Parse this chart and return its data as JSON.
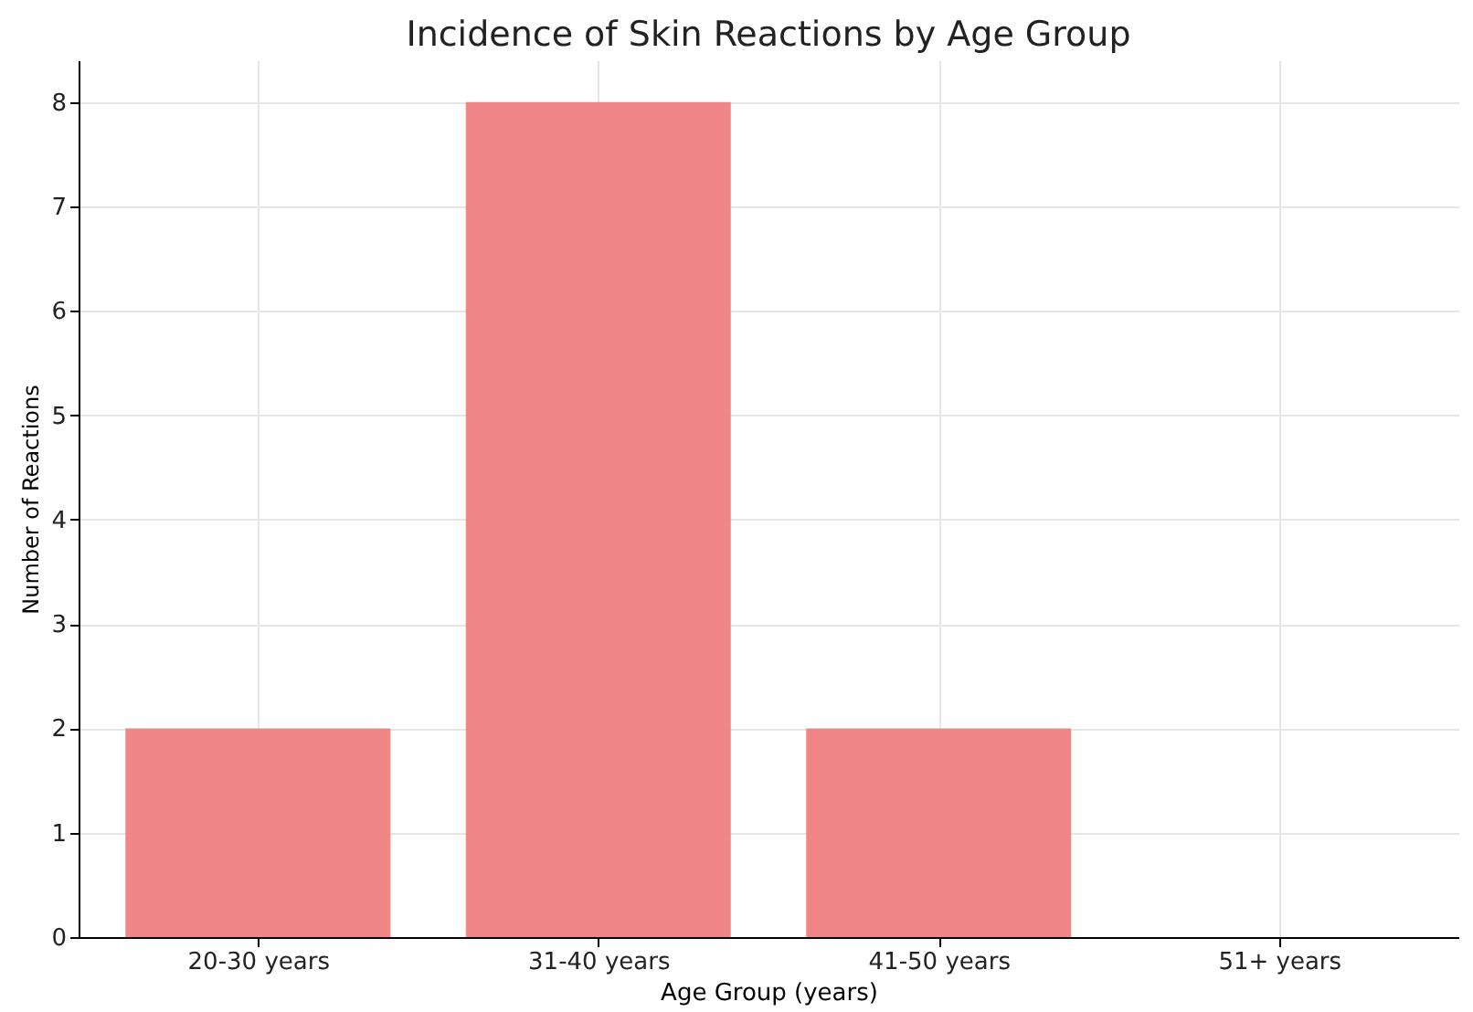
{
  "chart_data": {
    "type": "bar",
    "title": "Incidence of Skin Reactions by Age Group",
    "xlabel": "Age Group (years)",
    "ylabel": "Number of Reactions",
    "categories": [
      "20-30 years",
      "31-40 years",
      "41-50 years",
      "51+ years"
    ],
    "values": [
      2,
      8,
      2,
      0
    ],
    "color": "#f08080",
    "ylim": [
      0,
      8.4
    ],
    "yticks": [
      0,
      1,
      2,
      3,
      4,
      5,
      6,
      7,
      8
    ],
    "grid": true
  }
}
